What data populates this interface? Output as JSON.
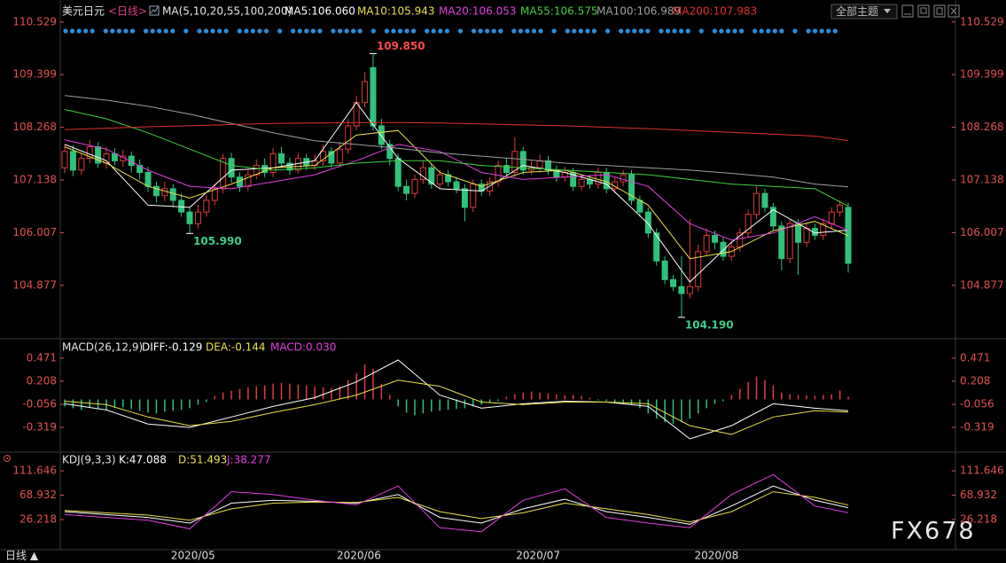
{
  "toolbar": {
    "theme_button": "全部主题"
  },
  "footer": {
    "period": "日线 ▲"
  },
  "watermark": "FX678",
  "chart_data": [
    {
      "type": "candlestick",
      "title": "美元日元",
      "subtitle": "<日线>",
      "indicator": "MA(5,10,20,55,100,200)",
      "up_color": "#e03c3c",
      "down_color": "#2fc27a",
      "tick_color": "#e05050",
      "xlim": [
        0,
        94
      ],
      "xticks": [
        {
          "value": 15.4,
          "label": "2020/05"
        },
        {
          "value": 35.3,
          "label": "2020/06"
        },
        {
          "value": 56.8,
          "label": "2020/07"
        },
        {
          "value": 78.2,
          "label": "2020/08"
        }
      ],
      "ylim": [
        103.77,
        110.62
      ],
      "yticks": [
        110.529,
        109.399,
        108.268,
        107.138,
        106.007,
        104.877
      ],
      "open": [
        107.4,
        107.75,
        107.35,
        107.6,
        107.85,
        107.5,
        107.7,
        107.55,
        107.65,
        107.45,
        107.3,
        107.0,
        106.8,
        106.95,
        106.7,
        106.45,
        106.2,
        106.45,
        106.7,
        106.95,
        107.6,
        107.2,
        107.0,
        107.25,
        107.45,
        107.3,
        107.7,
        107.5,
        107.35,
        107.6,
        107.45,
        107.55,
        107.75,
        107.5,
        107.8,
        108.3,
        108.8,
        109.55,
        108.3,
        107.9,
        107.6,
        107.0,
        106.85,
        107.15,
        107.4,
        107.05,
        107.25,
        107.1,
        106.95,
        106.55,
        107.05,
        106.9,
        107.1,
        107.45,
        107.3,
        107.75,
        107.35,
        107.4,
        107.55,
        107.35,
        107.2,
        107.3,
        107.0,
        107.15,
        107.05,
        107.3,
        106.95,
        107.1,
        107.25,
        106.7,
        106.45,
        106.0,
        105.4,
        105.0,
        104.85,
        104.7,
        104.85,
        105.6,
        105.95,
        105.8,
        105.5,
        105.7,
        106.0,
        106.4,
        106.85,
        106.55,
        106.15,
        105.45,
        106.2,
        105.8,
        106.1,
        105.95,
        106.2,
        106.45,
        106.55
      ],
      "high": [
        107.9,
        107.88,
        107.72,
        108.0,
        107.95,
        107.85,
        107.82,
        107.78,
        107.75,
        107.58,
        107.42,
        107.1,
        107.1,
        107.05,
        106.85,
        106.55,
        106.6,
        106.82,
        107.05,
        107.7,
        107.72,
        107.3,
        107.38,
        107.58,
        107.6,
        107.82,
        107.85,
        107.62,
        107.72,
        107.7,
        107.68,
        107.9,
        107.85,
        107.95,
        108.45,
        108.95,
        109.45,
        109.85,
        108.45,
        108.0,
        107.7,
        107.15,
        107.25,
        107.55,
        107.5,
        107.35,
        107.35,
        107.2,
        107.05,
        107.15,
        107.15,
        107.2,
        107.55,
        107.6,
        108.05,
        107.85,
        107.55,
        107.68,
        107.65,
        107.45,
        107.42,
        107.4,
        107.25,
        107.25,
        107.4,
        107.4,
        107.2,
        107.35,
        107.35,
        106.8,
        106.55,
        106.1,
        105.5,
        105.1,
        105.5,
        106.3,
        105.75,
        106.1,
        106.05,
        105.9,
        105.8,
        106.1,
        106.5,
        107.0,
        106.95,
        106.65,
        106.25,
        106.3,
        106.3,
        106.2,
        106.2,
        106.3,
        106.55,
        106.7,
        106.65
      ],
      "low": [
        107.28,
        107.22,
        107.25,
        107.5,
        107.4,
        107.38,
        107.45,
        107.42,
        107.3,
        107.15,
        106.88,
        106.65,
        106.68,
        106.55,
        106.35,
        105.99,
        106.1,
        106.35,
        106.6,
        106.85,
        107.08,
        106.88,
        106.9,
        107.15,
        107.2,
        107.2,
        107.4,
        107.25,
        107.28,
        107.35,
        107.35,
        107.45,
        107.4,
        107.42,
        107.7,
        108.2,
        108.7,
        108.2,
        107.8,
        107.45,
        106.9,
        106.7,
        106.75,
        107.05,
        106.95,
        106.95,
        107.0,
        106.85,
        106.25,
        106.45,
        106.8,
        106.8,
        107.0,
        107.2,
        107.2,
        107.25,
        107.25,
        107.3,
        107.25,
        107.1,
        107.1,
        106.9,
        106.9,
        106.95,
        106.95,
        106.85,
        106.85,
        107.0,
        106.6,
        106.35,
        105.9,
        105.3,
        104.9,
        104.75,
        104.19,
        104.6,
        104.75,
        105.5,
        105.65,
        105.4,
        105.4,
        105.6,
        105.9,
        106.3,
        106.45,
        106.05,
        105.2,
        105.35,
        105.1,
        105.7,
        105.85,
        105.85,
        106.1,
        106.35,
        105.15
      ],
      "close": [
        107.75,
        107.35,
        107.6,
        107.85,
        107.5,
        107.7,
        107.55,
        107.65,
        107.45,
        107.3,
        107.0,
        106.8,
        106.95,
        106.7,
        106.45,
        106.2,
        106.45,
        106.7,
        106.95,
        107.6,
        107.2,
        107.0,
        107.25,
        107.45,
        107.3,
        107.7,
        107.5,
        107.35,
        107.6,
        107.45,
        107.55,
        107.75,
        107.5,
        107.8,
        108.3,
        108.8,
        109.25,
        108.3,
        107.9,
        107.6,
        107.0,
        106.85,
        107.15,
        107.4,
        107.05,
        107.25,
        107.1,
        106.95,
        106.55,
        107.05,
        106.9,
        107.1,
        107.45,
        107.3,
        107.75,
        107.35,
        107.4,
        107.55,
        107.35,
        107.2,
        107.3,
        107.0,
        107.15,
        107.05,
        107.3,
        106.95,
        107.1,
        107.25,
        106.7,
        106.45,
        106.0,
        105.4,
        105.0,
        104.85,
        104.7,
        104.85,
        105.6,
        105.95,
        105.8,
        105.5,
        105.7,
        106.0,
        106.4,
        106.85,
        106.55,
        106.15,
        105.45,
        106.2,
        105.8,
        106.1,
        105.95,
        106.2,
        106.45,
        106.6,
        105.35
      ],
      "series": [
        {
          "name": "MA5:106.060",
          "color": "#ffffff",
          "x": [
            0,
            5,
            10,
            15,
            20,
            25,
            30,
            35,
            40,
            45,
            50,
            55,
            60,
            65,
            70,
            75,
            80,
            85,
            90,
            94
          ],
          "values": [
            107.9,
            107.55,
            106.6,
            106.55,
            107.35,
            107.4,
            107.55,
            108.8,
            107.6,
            106.95,
            106.9,
            107.45,
            107.3,
            107.05,
            106.2,
            104.95,
            105.8,
            106.5,
            106.0,
            106.06
          ]
        },
        {
          "name": "MA10:105.943",
          "color": "#e8e04a",
          "x": [
            0,
            5,
            10,
            15,
            20,
            25,
            30,
            35,
            40,
            45,
            50,
            55,
            60,
            65,
            70,
            75,
            80,
            85,
            90,
            94
          ],
          "values": [
            107.85,
            107.5,
            107.0,
            106.75,
            107.05,
            107.4,
            107.45,
            108.1,
            108.2,
            107.3,
            107.0,
            107.3,
            107.35,
            107.1,
            106.6,
            105.45,
            105.6,
            106.05,
            106.25,
            105.943
          ]
        },
        {
          "name": "MA20:106.053",
          "color": "#e040e0",
          "x": [
            0,
            5,
            10,
            15,
            20,
            25,
            30,
            35,
            40,
            45,
            50,
            55,
            60,
            65,
            70,
            75,
            80,
            85,
            90,
            94
          ],
          "values": [
            108.0,
            107.8,
            107.35,
            107.0,
            106.95,
            107.1,
            107.25,
            107.55,
            107.9,
            107.75,
            107.3,
            107.15,
            107.2,
            107.25,
            107.0,
            106.2,
            105.85,
            106.0,
            106.35,
            106.053
          ]
        },
        {
          "name": "MA55:106.575",
          "color": "#40d040",
          "x": [
            0,
            5,
            10,
            15,
            20,
            25,
            30,
            35,
            40,
            45,
            50,
            55,
            60,
            65,
            70,
            75,
            80,
            85,
            90,
            94
          ],
          "values": [
            108.65,
            108.45,
            108.15,
            107.8,
            107.45,
            107.35,
            107.4,
            107.5,
            107.55,
            107.55,
            107.45,
            107.4,
            107.35,
            107.3,
            107.25,
            107.15,
            107.05,
            107.0,
            106.95,
            106.575
          ]
        },
        {
          "name": "MA100:106.989",
          "color": "#a0a0a0",
          "x": [
            0,
            5,
            10,
            15,
            20,
            25,
            30,
            35,
            40,
            45,
            50,
            55,
            60,
            65,
            70,
            75,
            80,
            85,
            90,
            94
          ],
          "values": [
            108.95,
            108.85,
            108.72,
            108.55,
            108.35,
            108.15,
            107.98,
            107.9,
            107.82,
            107.72,
            107.65,
            107.58,
            107.5,
            107.45,
            107.4,
            107.35,
            107.28,
            107.2,
            107.05,
            106.989
          ]
        },
        {
          "name": "MA200:107.983",
          "color": "#e03030",
          "x": [
            0,
            5,
            10,
            15,
            20,
            25,
            30,
            35,
            40,
            45,
            50,
            55,
            60,
            65,
            70,
            75,
            80,
            85,
            90,
            94
          ],
          "values": [
            108.22,
            108.25,
            108.28,
            108.3,
            108.33,
            108.35,
            108.36,
            108.37,
            108.37,
            108.36,
            108.34,
            108.32,
            108.3,
            108.27,
            108.24,
            108.2,
            108.16,
            108.12,
            108.08,
            107.983
          ]
        }
      ],
      "annotations": [
        {
          "text": "109.850",
          "x": 37,
          "y": 109.85,
          "color": "#ff4a4a"
        },
        {
          "text": "105.990",
          "x": 15,
          "y": 105.99,
          "color": "#3ad08a"
        },
        {
          "text": "104.190",
          "x": 74,
          "y": 104.19,
          "color": "#3ad08a"
        }
      ]
    },
    {
      "type": "bar",
      "indicator": "MACD(26,12,9)",
      "name": "MACD:0.030",
      "name_color": "#e040e0",
      "up_color": "#e03c3c",
      "down_color": "#2fc27a",
      "tick_color": "#e05050",
      "ylim": [
        -0.582,
        0.673
      ],
      "yticks": [
        0.471,
        0.208,
        -0.056,
        -0.319
      ],
      "values": [
        -0.08,
        -0.1,
        -0.12,
        -0.1,
        -0.11,
        -0.12,
        -0.1,
        -0.09,
        -0.11,
        -0.13,
        -0.15,
        -0.16,
        -0.14,
        -0.13,
        -0.12,
        -0.1,
        -0.06,
        -0.03,
        0.04,
        0.08,
        0.1,
        0.12,
        0.14,
        0.15,
        0.16,
        0.18,
        0.19,
        0.18,
        0.17,
        0.16,
        0.15,
        0.14,
        0.13,
        0.15,
        0.22,
        0.3,
        0.4,
        0.35,
        0.18,
        0.05,
        -0.08,
        -0.15,
        -0.18,
        -0.16,
        -0.14,
        -0.13,
        -0.12,
        -0.11,
        -0.1,
        -0.08,
        -0.06,
        -0.04,
        -0.02,
        0.03,
        0.06,
        0.08,
        0.09,
        0.08,
        0.07,
        0.06,
        0.05,
        0.05,
        0.04,
        0.02,
        -0.01,
        -0.02,
        -0.03,
        -0.04,
        -0.06,
        -0.1,
        -0.16,
        -0.22,
        -0.26,
        -0.28,
        -0.26,
        -0.22,
        -0.16,
        -0.1,
        -0.05,
        -0.02,
        0.05,
        0.12,
        0.2,
        0.26,
        0.22,
        0.16,
        0.08,
        0.06,
        0.05,
        0.05,
        0.04,
        0.05,
        0.06,
        0.1,
        0.03
      ],
      "series": [
        {
          "name": "DIFF:-0.129",
          "color": "#ffffff",
          "x": [
            0,
            5,
            10,
            15,
            20,
            25,
            30,
            35,
            40,
            45,
            50,
            55,
            60,
            65,
            70,
            75,
            80,
            85,
            90,
            94
          ],
          "values": [
            -0.05,
            -0.12,
            -0.28,
            -0.32,
            -0.2,
            -0.08,
            0.02,
            0.2,
            0.45,
            0.05,
            -0.1,
            -0.05,
            -0.02,
            -0.03,
            -0.08,
            -0.45,
            -0.3,
            -0.05,
            -0.1,
            -0.129
          ]
        },
        {
          "name": "DEA:-0.144",
          "color": "#e8e04a",
          "x": [
            0,
            5,
            10,
            15,
            20,
            25,
            30,
            35,
            40,
            45,
            50,
            55,
            60,
            65,
            70,
            75,
            80,
            85,
            90,
            94
          ],
          "values": [
            -0.02,
            -0.06,
            -0.2,
            -0.3,
            -0.25,
            -0.15,
            -0.06,
            0.05,
            0.22,
            0.15,
            -0.03,
            -0.06,
            -0.03,
            -0.03,
            -0.05,
            -0.3,
            -0.4,
            -0.2,
            -0.13,
            -0.144
          ]
        }
      ]
    },
    {
      "type": "line",
      "indicator": "KDJ(9,3,3)",
      "tick_color": "#e05050",
      "ylim": [
        -26.6,
        141.2
      ],
      "yticks": [
        111.646,
        68.932,
        26.218
      ],
      "series": [
        {
          "name": "K:47.088",
          "color": "#ffffff",
          "x": [
            0,
            5,
            10,
            15,
            20,
            25,
            30,
            35,
            40,
            45,
            50,
            55,
            60,
            65,
            70,
            75,
            80,
            85,
            90,
            94
          ],
          "values": [
            40,
            35,
            30,
            20,
            55,
            60,
            58,
            55,
            70,
            30,
            20,
            45,
            62,
            40,
            30,
            18,
            50,
            85,
            60,
            47.088
          ]
        },
        {
          "name": "D:51.493",
          "color": "#e8e04a",
          "x": [
            0,
            5,
            10,
            15,
            20,
            25,
            30,
            35,
            40,
            45,
            50,
            55,
            60,
            65,
            70,
            75,
            80,
            85,
            90,
            94
          ],
          "values": [
            42,
            38,
            34,
            25,
            45,
            55,
            57,
            56,
            65,
            40,
            28,
            38,
            55,
            45,
            35,
            22,
            40,
            75,
            65,
            51.493
          ]
        },
        {
          "name": "J:38.277",
          "color": "#e040e0",
          "x": [
            0,
            5,
            10,
            15,
            20,
            25,
            30,
            35,
            40,
            45,
            50,
            55,
            60,
            65,
            70,
            75,
            80,
            85,
            90,
            94
          ],
          "values": [
            35,
            30,
            25,
            10,
            75,
            70,
            60,
            52,
            85,
            12,
            5,
            60,
            80,
            30,
            20,
            12,
            70,
            105,
            50,
            38.277
          ]
        }
      ]
    }
  ]
}
